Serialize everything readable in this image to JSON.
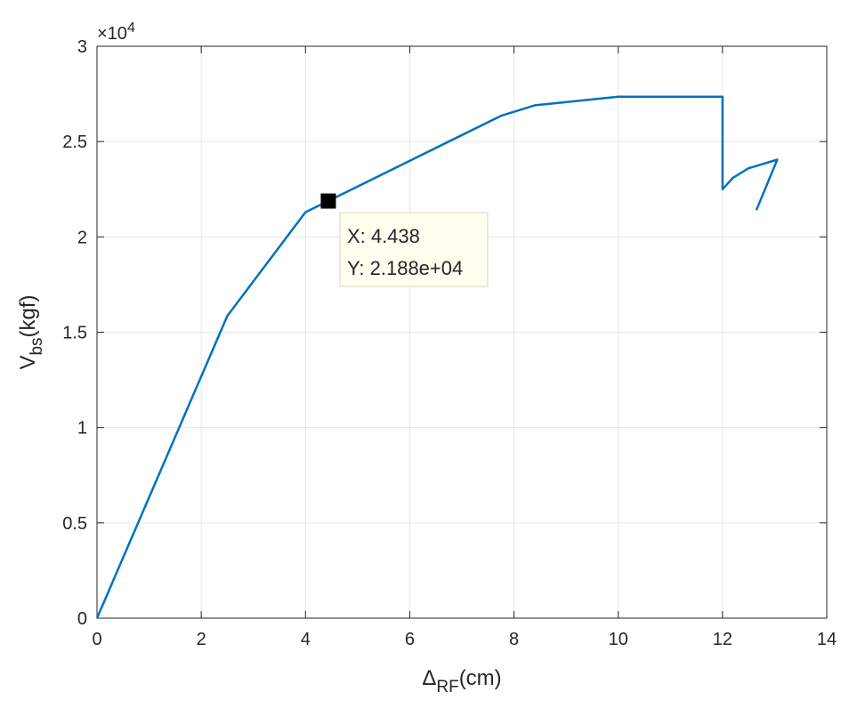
{
  "chart_data": {
    "type": "line",
    "xlabel": {
      "main": "Δ",
      "sub": "RF",
      "unit": "(cm)"
    },
    "ylabel": {
      "main": "V",
      "sub": "bs",
      "unit": "(kgf)"
    },
    "xlim": [
      0,
      14
    ],
    "ylim": [
      0,
      30000
    ],
    "x_ticks": [
      0,
      2,
      4,
      6,
      8,
      10,
      12,
      14
    ],
    "x_tick_labels": [
      "0",
      "2",
      "4",
      "6",
      "8",
      "10",
      "12",
      "14"
    ],
    "y_ticks": [
      0,
      5000,
      10000,
      15000,
      20000,
      25000,
      30000
    ],
    "y_tick_labels": [
      "0",
      "0.5",
      "1",
      "1.5",
      "2",
      "2.5",
      "3"
    ],
    "y_exponent": {
      "base": "×10",
      "power": "4"
    },
    "grid": true,
    "line_color": "#0072BD",
    "series": [
      {
        "x": [
          0,
          2.5,
          4.0,
          4.438,
          7.75,
          8.4,
          10.0,
          12.0,
          12.0,
          12.2,
          12.5,
          13.05,
          12.65
        ],
        "y": [
          0,
          15850,
          21300,
          21880,
          26350,
          26900,
          27350,
          27350,
          22500,
          23100,
          23600,
          24050,
          21400
        ]
      }
    ],
    "datatip": {
      "x": 4.438,
      "y": 21880,
      "x_text": "X: 4.438",
      "y_text": "Y: 2.188e+04",
      "fill_color": "#FFFFF0",
      "border_color": "#D9D9B8"
    }
  }
}
